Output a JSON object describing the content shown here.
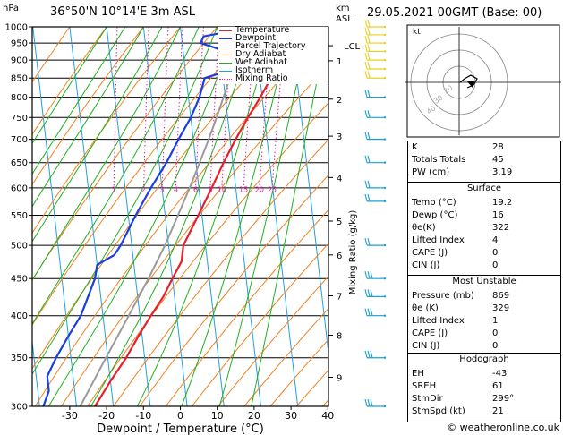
{
  "header": {
    "hpa_label": "hPa",
    "location": "36°50'N  10°14'E  3m  ASL",
    "km_label": "km",
    "asl_label": "ASL",
    "datetime": "29.05.2021  00GMT  (Base: 00)"
  },
  "legend": [
    {
      "name": "Temperature",
      "color": "#e8202a",
      "style": "solid"
    },
    {
      "name": "Dewpoint",
      "color": "#1a3fe0",
      "style": "solid"
    },
    {
      "name": "Parcel Trajectory",
      "color": "#9a9a9a",
      "style": "solid"
    },
    {
      "name": "Dry Adiabat",
      "color": "#f08020",
      "style": "solid"
    },
    {
      "name": "Wet Adiabat",
      "color": "#20b020",
      "style": "solid"
    },
    {
      "name": "Isotherm",
      "color": "#20a0e0",
      "style": "solid"
    },
    {
      "name": "Mixing Ratio",
      "color": "#e020a0",
      "style": "dotted"
    }
  ],
  "chart_data": {
    "type": "line",
    "subtype": "skew-T log-p",
    "xlabel": "Dewpoint / Temperature (°C)",
    "ylabel": "hPa",
    "xlim": [
      -35,
      40
    ],
    "ylim": [
      1000,
      300
    ],
    "x_ticks": [
      "-30",
      "-20",
      "-10",
      "0",
      "10",
      "20",
      "30",
      "40"
    ],
    "pressure_levels": [
      "300",
      "350",
      "400",
      "450",
      "500",
      "550",
      "600",
      "650",
      "700",
      "750",
      "800",
      "850",
      "900",
      "950",
      "1000"
    ],
    "km_ticks": [
      "9",
      "8",
      "7",
      "6",
      "5",
      "4",
      "3",
      "2",
      "1"
    ],
    "km_pressures": [
      329,
      376,
      426,
      485,
      540,
      620,
      707,
      795,
      898
    ],
    "lcl_label": "LCL",
    "lcl_pressure": 942,
    "mixing_ratio_title": "Mixing Ratio (g/kg)",
    "mixing_ratio_labels": [
      "1",
      "2",
      "3",
      "4",
      "6",
      "8",
      "10",
      "15",
      "20",
      "25"
    ],
    "mixing_ratio_label_pressure": 592,
    "series": [
      {
        "name": "Temperature",
        "color": "#e8202a",
        "points": [
          [
            1000,
            19.2
          ],
          [
            985,
            19
          ],
          [
            950,
            20
          ],
          [
            925,
            22
          ],
          [
            900,
            23
          ],
          [
            880,
            23.5
          ],
          [
            850,
            23
          ],
          [
            800,
            19.5
          ],
          [
            750,
            15.5
          ],
          [
            700,
            11.5
          ],
          [
            650,
            7.5
          ],
          [
            600,
            3.5
          ],
          [
            550,
            -1
          ],
          [
            500,
            -6
          ],
          [
            475,
            -7
          ],
          [
            450,
            -10
          ],
          [
            425,
            -13
          ],
          [
            400,
            -17
          ],
          [
            375,
            -21
          ],
          [
            350,
            -25
          ],
          [
            325,
            -30
          ],
          [
            300,
            -35
          ]
        ]
      },
      {
        "name": "Dewpoint",
        "color": "#1a3fe0",
        "points": [
          [
            1000,
            16
          ],
          [
            985,
            13
          ],
          [
            970,
            6
          ],
          [
            950,
            5
          ],
          [
            935,
            9
          ],
          [
            920,
            12
          ],
          [
            900,
            12
          ],
          [
            880,
            12
          ],
          [
            865,
            10
          ],
          [
            850,
            5
          ],
          [
            800,
            3
          ],
          [
            750,
            0
          ],
          [
            700,
            -4
          ],
          [
            650,
            -8
          ],
          [
            600,
            -13
          ],
          [
            550,
            -18
          ],
          [
            500,
            -23
          ],
          [
            485,
            -25
          ],
          [
            470,
            -30
          ],
          [
            450,
            -31
          ],
          [
            400,
            -36
          ],
          [
            375,
            -40
          ],
          [
            350,
            -44
          ],
          [
            330,
            -47
          ],
          [
            315,
            -47
          ],
          [
            300,
            -49
          ]
        ]
      },
      {
        "name": "Parcel Trajectory",
        "color": "#9a9a9a",
        "points": [
          [
            1000,
            19.2
          ],
          [
            970,
            17
          ],
          [
            942,
            15.2
          ],
          [
            900,
            13.8
          ],
          [
            850,
            11.8
          ],
          [
            800,
            9.5
          ],
          [
            750,
            7
          ],
          [
            700,
            4.2
          ],
          [
            650,
            1
          ],
          [
            600,
            -2.5
          ],
          [
            550,
            -6.5
          ],
          [
            500,
            -11
          ],
          [
            450,
            -16.5
          ],
          [
            400,
            -23
          ],
          [
            350,
            -30.5
          ],
          [
            300,
            -39
          ]
        ]
      }
    ]
  },
  "hodograph": {
    "unit_label": "kt",
    "ring_labels": [
      "40",
      "30",
      "20"
    ]
  },
  "indices": {
    "k_label": "K",
    "k": "28",
    "tt_label": "Totals Totals",
    "tt": "45",
    "pw_label": "PW (cm)",
    "pw": "3.19"
  },
  "surface": {
    "title": "Surface",
    "rows": [
      {
        "label": "Temp (°C)",
        "value": "19.2"
      },
      {
        "label": "Dewp (°C)",
        "value": "16"
      },
      {
        "label": "θe(K)",
        "value": "322"
      },
      {
        "label": "Lifted Index",
        "value": "4"
      },
      {
        "label": "CAPE (J)",
        "value": "0"
      },
      {
        "label": "CIN (J)",
        "value": "0"
      }
    ]
  },
  "most_unstable": {
    "title": "Most Unstable",
    "rows": [
      {
        "label": "Pressure (mb)",
        "value": "869"
      },
      {
        "label": "θe (K)",
        "value": "329"
      },
      {
        "label": "Lifted Index",
        "value": "1"
      },
      {
        "label": "CAPE (J)",
        "value": "0"
      },
      {
        "label": "CIN (J)",
        "value": "0"
      }
    ]
  },
  "hodo_stats": {
    "title": "Hodograph",
    "rows": [
      {
        "label": "EH",
        "value": "-43"
      },
      {
        "label": "SREH",
        "value": "61"
      },
      {
        "label": "StmDir",
        "value": "299°"
      },
      {
        "label": "StmSpd (kt)",
        "value": "21"
      }
    ]
  },
  "credit": "© weatheronline.co.uk",
  "colors": {
    "temperature": "#e8202a",
    "dewpoint": "#1a3fe0",
    "parcel": "#9a9a9a",
    "dry_adiabat": "#f08020",
    "wet_adiabat": "#20b020",
    "isotherm": "#20a0e0",
    "mixing_ratio": "#e020a0",
    "wind_upper": "#1aa0d0",
    "wind_lower": "#e8d020"
  }
}
